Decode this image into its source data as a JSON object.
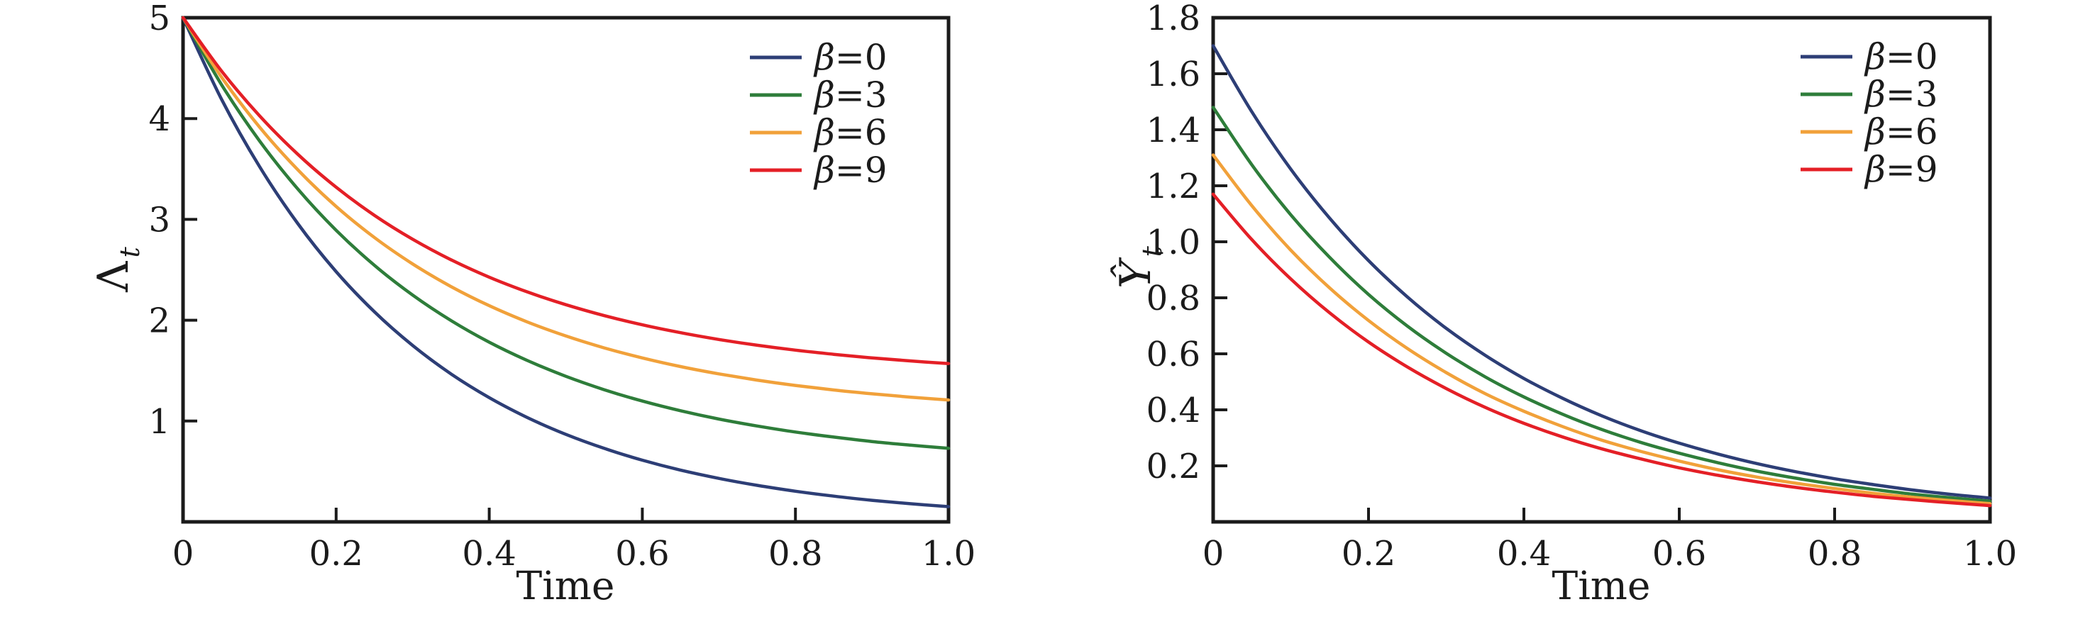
{
  "figure": {
    "background": "#ffffff",
    "text_color": "#1b1b1b"
  },
  "chart_data": [
    {
      "id": "lambda",
      "type": "line",
      "title": "",
      "xlabel": "Time",
      "ylabel": "Λ_t",
      "ylabel_base": "Λ",
      "ylabel_sub": "t",
      "ylabel_italic": false,
      "xlim": [
        0,
        1
      ],
      "ylim": [
        0,
        5
      ],
      "grid": false,
      "legend_position": "upper right",
      "x_tick_values": [
        0,
        0.2,
        0.4,
        0.6,
        0.8,
        1.0
      ],
      "x_tick_labels": [
        "0",
        "0.2",
        "0.4",
        "0.6",
        "0.8",
        "1.0"
      ],
      "y_tick_values": [
        1,
        2,
        3,
        4,
        5
      ],
      "y_tick_labels": [
        "1",
        "2",
        "3",
        "4",
        "5"
      ],
      "x": [
        0,
        0.05,
        0.1,
        0.15,
        0.2,
        0.25,
        0.3,
        0.35,
        0.4,
        0.45,
        0.5,
        0.55,
        0.6,
        0.65,
        0.7,
        0.75,
        0.8,
        0.85,
        0.9,
        0.95,
        1.0
      ],
      "series": [
        {
          "name": "β=0",
          "color": "#2d3e76",
          "values": [
            5.0,
            4.196,
            3.523,
            2.957,
            2.482,
            2.083,
            1.749,
            1.468,
            1.232,
            1.034,
            0.868,
            0.729,
            0.612,
            0.513,
            0.431,
            0.362,
            0.304,
            0.255,
            0.214,
            0.18,
            0.151
          ]
        },
        {
          "name": "β=3",
          "color": "#2e7d3a",
          "values": [
            5.0,
            4.34,
            3.778,
            3.3,
            2.892,
            2.544,
            2.249,
            1.997,
            1.782,
            1.6,
            1.444,
            1.311,
            1.198,
            1.102,
            1.02,
            0.951,
            0.891,
            0.841,
            0.797,
            0.761,
            0.729
          ]
        },
        {
          "name": "β=6",
          "color": "#f1a13a",
          "values": [
            5.0,
            4.414,
            3.915,
            3.491,
            3.128,
            2.82,
            2.558,
            2.334,
            2.144,
            1.982,
            1.844,
            1.726,
            1.626,
            1.54,
            1.468,
            1.406,
            1.353,
            1.308,
            1.27,
            1.237,
            1.209
          ]
        },
        {
          "name": "β=9",
          "color": "#e41f26",
          "values": [
            5.0,
            4.475,
            4.027,
            3.645,
            3.319,
            3.04,
            2.803,
            2.6,
            2.427,
            2.28,
            2.154,
            2.046,
            1.954,
            1.876,
            1.809,
            1.752,
            1.703,
            1.662,
            1.626,
            1.596,
            1.57
          ]
        }
      ]
    },
    {
      "id": "yhat",
      "type": "line",
      "title": "",
      "xlabel": "Time",
      "ylabel": "Ŷ_t",
      "ylabel_base": "Ŷ",
      "ylabel_sub": "t",
      "ylabel_italic": true,
      "xlim": [
        0,
        1
      ],
      "ylim": [
        0,
        1.8
      ],
      "grid": false,
      "legend_position": "upper right",
      "x_tick_values": [
        0,
        0.2,
        0.4,
        0.6,
        0.8,
        1.0
      ],
      "x_tick_labels": [
        "0",
        "0.2",
        "0.4",
        "0.6",
        "0.8",
        "1.0"
      ],
      "y_tick_values": [
        0.2,
        0.4,
        0.6,
        0.8,
        1.0,
        1.2,
        1.4,
        1.6,
        1.8
      ],
      "y_tick_labels": [
        "0.2",
        "0.4",
        "0.6",
        "0.8",
        "1.0",
        "1.2",
        "1.4",
        "1.6",
        "1.8"
      ],
      "x": [
        0,
        0.05,
        0.1,
        0.15,
        0.2,
        0.25,
        0.3,
        0.35,
        0.4,
        0.45,
        0.5,
        0.55,
        0.6,
        0.65,
        0.7,
        0.75,
        0.8,
        0.85,
        0.9,
        0.95,
        1.0
      ],
      "series": [
        {
          "name": "β=0",
          "color": "#2d3e76",
          "values": [
            1.7,
            1.463,
            1.259,
            1.084,
            0.933,
            0.803,
            0.691,
            0.595,
            0.512,
            0.441,
            0.379,
            0.326,
            0.281,
            0.242,
            0.208,
            0.179,
            0.154,
            0.133,
            0.114,
            0.098,
            0.085
          ]
        },
        {
          "name": "β=3",
          "color": "#2e7d3a",
          "values": [
            1.48,
            1.274,
            1.096,
            0.944,
            0.812,
            0.699,
            0.602,
            0.518,
            0.446,
            0.384,
            0.33,
            0.284,
            0.245,
            0.211,
            0.181,
            0.156,
            0.134,
            0.116,
            0.099,
            0.086,
            0.074
          ]
        },
        {
          "name": "β=6",
          "color": "#f1a13a",
          "values": [
            1.31,
            1.128,
            0.97,
            0.835,
            0.719,
            0.619,
            0.533,
            0.458,
            0.395,
            0.34,
            0.292,
            0.252,
            0.217,
            0.186,
            0.16,
            0.138,
            0.119,
            0.102,
            0.088,
            0.076,
            0.065
          ]
        },
        {
          "name": "β=9",
          "color": "#e41f26",
          "values": [
            1.17,
            1.007,
            0.867,
            0.746,
            0.642,
            0.553,
            0.476,
            0.409,
            0.352,
            0.303,
            0.261,
            0.225,
            0.193,
            0.166,
            0.143,
            0.123,
            0.106,
            0.091,
            0.079,
            0.068,
            0.058
          ]
        }
      ]
    }
  ]
}
